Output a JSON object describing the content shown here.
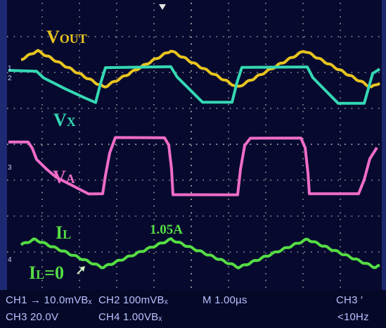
{
  "colors": {
    "background": "#070a2e",
    "vout": "#e8c420",
    "vx": "#35d8b4",
    "va": "#f06cc8",
    "il": "#55dd44",
    "grid": "#c8c8c8",
    "status_text": "#b8c2ff"
  },
  "icons": {
    "trigger_marker": "down-triangle",
    "arrow": "arrow-up-right"
  },
  "labels": {
    "vout_main": "V",
    "vout_sub": "OUT",
    "vx_main": "V",
    "vx_sub": "X",
    "va_main": "V",
    "va_sub": "A",
    "il_main": "I",
    "il_sub": "L",
    "il_peak": "1.05A",
    "il_zero_main": "I",
    "il_zero_sub": "L",
    "il_zero_eq": "=0"
  },
  "channel_markers": {
    "ch1": "1",
    "ch2": "2",
    "ch3": "3",
    "ch4": "4"
  },
  "status": {
    "row1_ch1": "CH1 → 10.0mVBₓ",
    "row1_ch2": "CH2  100mVBₓ",
    "row1_time": "M 1.00µs",
    "row1_trig": "CH3 ′",
    "row2_ch3": "CH3  20.0V",
    "row2_ch4": "CH4  1.00VBₓ",
    "row2_freq": "<10Hz"
  }
}
